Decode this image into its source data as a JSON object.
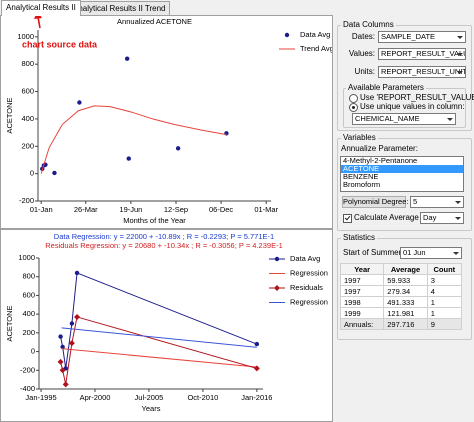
{
  "tabs": [
    "Analytical Results II",
    "Analytical Results II Trend"
  ],
  "active_tab": 0,
  "annotation": "chart source data",
  "top_chart": {
    "type": "scatter",
    "title": "Annualized ACETONE",
    "xlabel": "Months of the Year",
    "ylabel": "ACETONE",
    "xlim": [
      -6,
      433
    ],
    "xticks": [
      {
        "value": 0,
        "label": "01-Jan"
      },
      {
        "value": 84,
        "label": "26-Mar"
      },
      {
        "value": 169,
        "label": "19-Jun"
      },
      {
        "value": 254,
        "label": "12-Sep"
      },
      {
        "value": 339,
        "label": "06-Dec"
      },
      {
        "value": 424,
        "label": "01-Mar"
      }
    ],
    "ylim": [
      -200,
      1050
    ],
    "yticks": [
      -200,
      0,
      200,
      400,
      600,
      800,
      1000
    ],
    "series": [
      {
        "name": "Data Avg",
        "color": "#1c1c8c",
        "marker": "circle",
        "line": false,
        "x": [
          2,
          5,
          8,
          25,
          72,
          162,
          165,
          258,
          349
        ],
        "values": [
          35,
          60,
          65,
          5,
          520,
          840,
          110,
          185,
          295
        ]
      },
      {
        "name": "Trend Avg",
        "color": "#e8453c",
        "line": true,
        "x": [
          0,
          15,
          40,
          70,
          100,
          130,
          170,
          210,
          250,
          300,
          349
        ],
        "values": [
          0,
          190,
          360,
          460,
          495,
          490,
          450,
          400,
          360,
          320,
          285
        ]
      }
    ]
  },
  "bottom_chart": {
    "type": "line",
    "title": "Data Regression: y = 22000 + -10.89x ; R = -0.2293; P = 5.771E-1",
    "subtitle": "Residuals Regression: y = 20680 + -10.34x ; R = -0.3056; P = 4.239E-1",
    "xlabel": "Years",
    "ylabel": "ACETONE",
    "xlim": [
      1994.8,
      2016.6
    ],
    "xticks": [
      {
        "value": 1995,
        "label": "Jan-1995"
      },
      {
        "value": 2000.25,
        "label": "Apr-2000"
      },
      {
        "value": 2005.5,
        "label": "Jul-2005"
      },
      {
        "value": 2010.75,
        "label": "Oct-2010"
      },
      {
        "value": 2016,
        "label": "Jan-2016"
      }
    ],
    "ylim": [
      -400,
      1000
    ],
    "yticks": [
      -400,
      -200,
      0,
      200,
      400,
      600,
      800,
      1000
    ],
    "series": [
      {
        "name": "Data Avg",
        "color": "#1c1c8c",
        "marker": "circle",
        "line": true,
        "x": [
          1996.9,
          1997.1,
          1997.4,
          1998.0,
          1998.5,
          2016.0
        ],
        "values": [
          160,
          50,
          -180,
          300,
          840,
          80
        ]
      },
      {
        "name": "Regression",
        "color": "#e8453c",
        "line": true,
        "x": [
          1997,
          2016
        ],
        "values": [
          31,
          -165
        ]
      },
      {
        "name": "Residuals",
        "color": "#b0121b",
        "marker": "diamond",
        "line": true,
        "x": [
          1996.9,
          1997.1,
          1997.4,
          1998.0,
          1998.5,
          2016.0
        ],
        "values": [
          -110,
          -200,
          -350,
          90,
          370,
          -180
        ]
      },
      {
        "name": "Regression",
        "color": "#3a56d4",
        "line": true,
        "x": [
          1997,
          2016
        ],
        "values": [
          253,
          46
        ]
      }
    ]
  },
  "data_columns": {
    "title": "Data Columns",
    "fields": [
      {
        "label": "Dates:",
        "value": "SAMPLE_DATE"
      },
      {
        "label": "Values:",
        "value": "REPORT_RESULT_VALUE"
      },
      {
        "label": "Units:",
        "value": "REPORT_RESULT_UNIT"
      }
    ],
    "available_parameters": {
      "title": "Available Parameters",
      "options": [
        "Use 'REPORT_RESULT_VALUE'",
        "Use unique values in column:"
      ],
      "selected": 1,
      "column": "CHEMICAL_NAME"
    }
  },
  "variables": {
    "title": "Variables",
    "annualize_label": "Annualize Parameter:",
    "parameters": [
      "4-Methyl-2-Pentanone",
      "ACETONE",
      "BENZENE",
      "Bromoform"
    ],
    "selected": 1,
    "polynomial_label": "Polynomial Degree:",
    "polynomial_degree": 5,
    "average_label": "Calculate Average By:",
    "average_checked": true,
    "average_by": "Day"
  },
  "statistics": {
    "title": "Statistics",
    "summer_label": "Start of Summer:",
    "summer_start": "01 Jun",
    "columns": [
      "Year",
      "Average",
      "Count"
    ],
    "rows": [
      [
        1997,
        59.933,
        3
      ],
      [
        1997,
        279.34,
        4
      ],
      [
        1998,
        491.333,
        1
      ],
      [
        1999,
        121.981,
        1
      ]
    ],
    "total": [
      "Annuals:",
      297.716,
      9
    ]
  }
}
